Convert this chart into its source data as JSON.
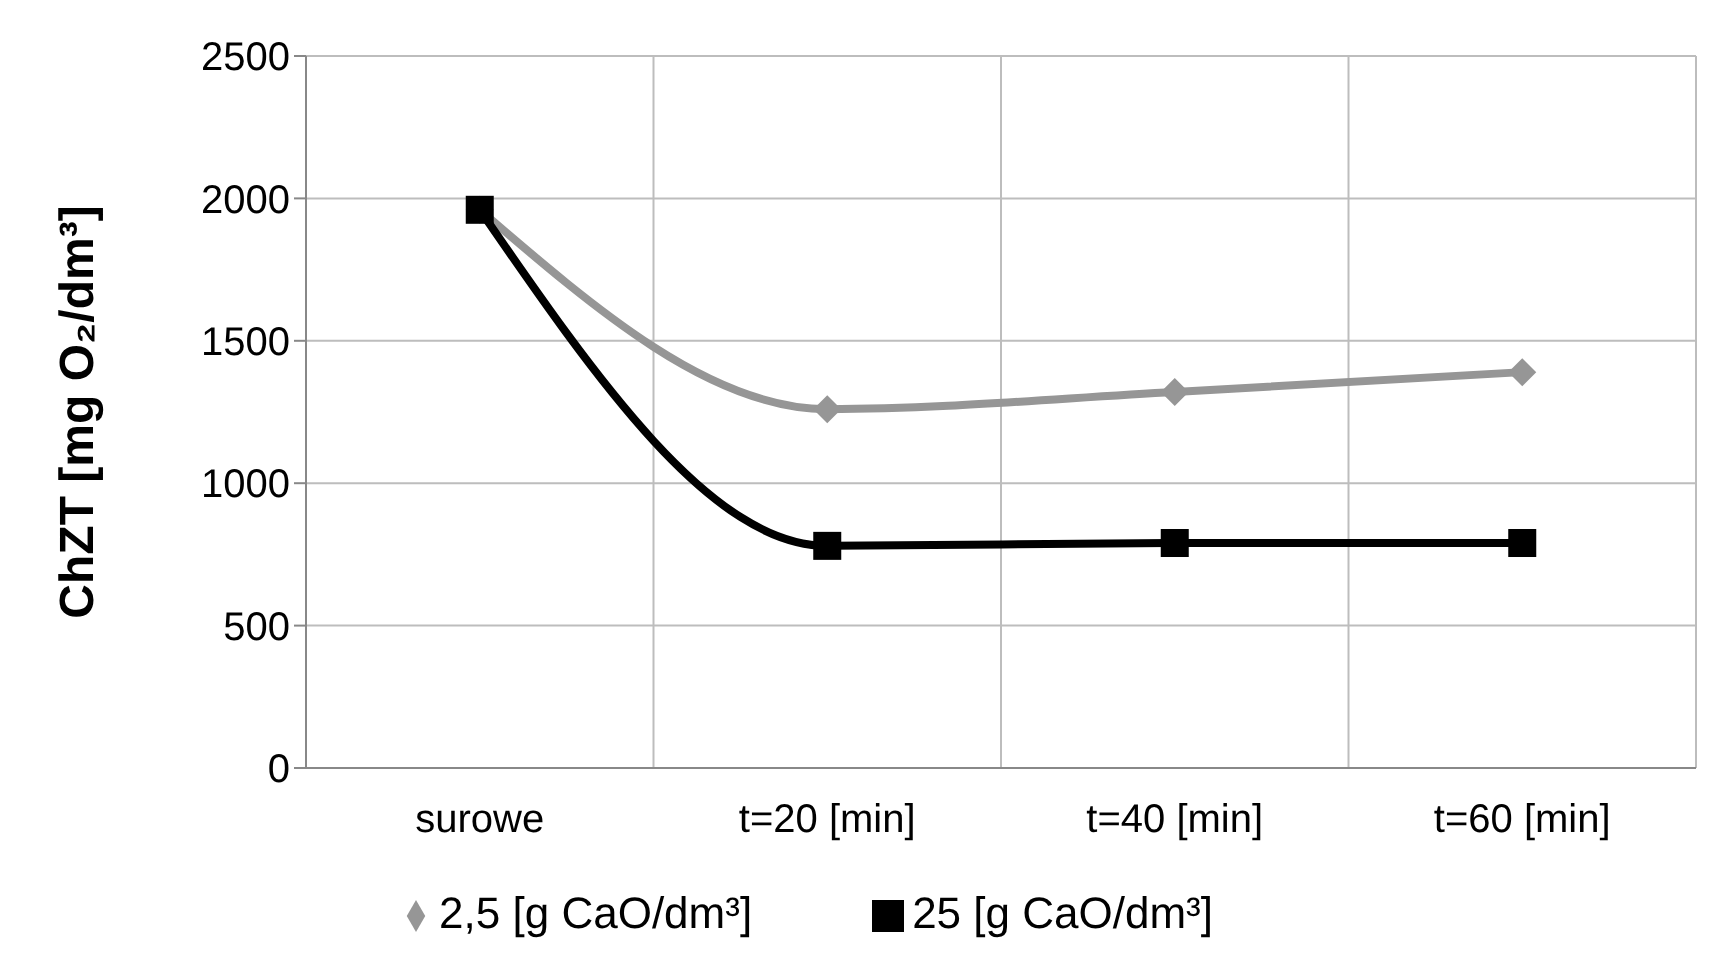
{
  "chart_data": {
    "type": "line",
    "ylabel": "ChZT [mg O₂/dm³]",
    "categories": [
      "surowe",
      "t=20 [min]",
      "t=40 [min]",
      "t=60 [min]"
    ],
    "series": [
      {
        "name": "2,5 [g CaO/dm³]",
        "color": "#969696",
        "values": [
          1960,
          1260,
          1320,
          1390
        ],
        "marker": "diamond"
      },
      {
        "name": "25 [g CaO/dm³]",
        "color": "#000000",
        "values": [
          1960,
          780,
          790,
          790
        ],
        "marker": "square"
      }
    ],
    "ylim": [
      0,
      2500
    ],
    "yticks": [
      0,
      500,
      1000,
      1500,
      2000,
      2500
    ],
    "grid": true,
    "legend": "bottom",
    "line_style": "solid"
  }
}
